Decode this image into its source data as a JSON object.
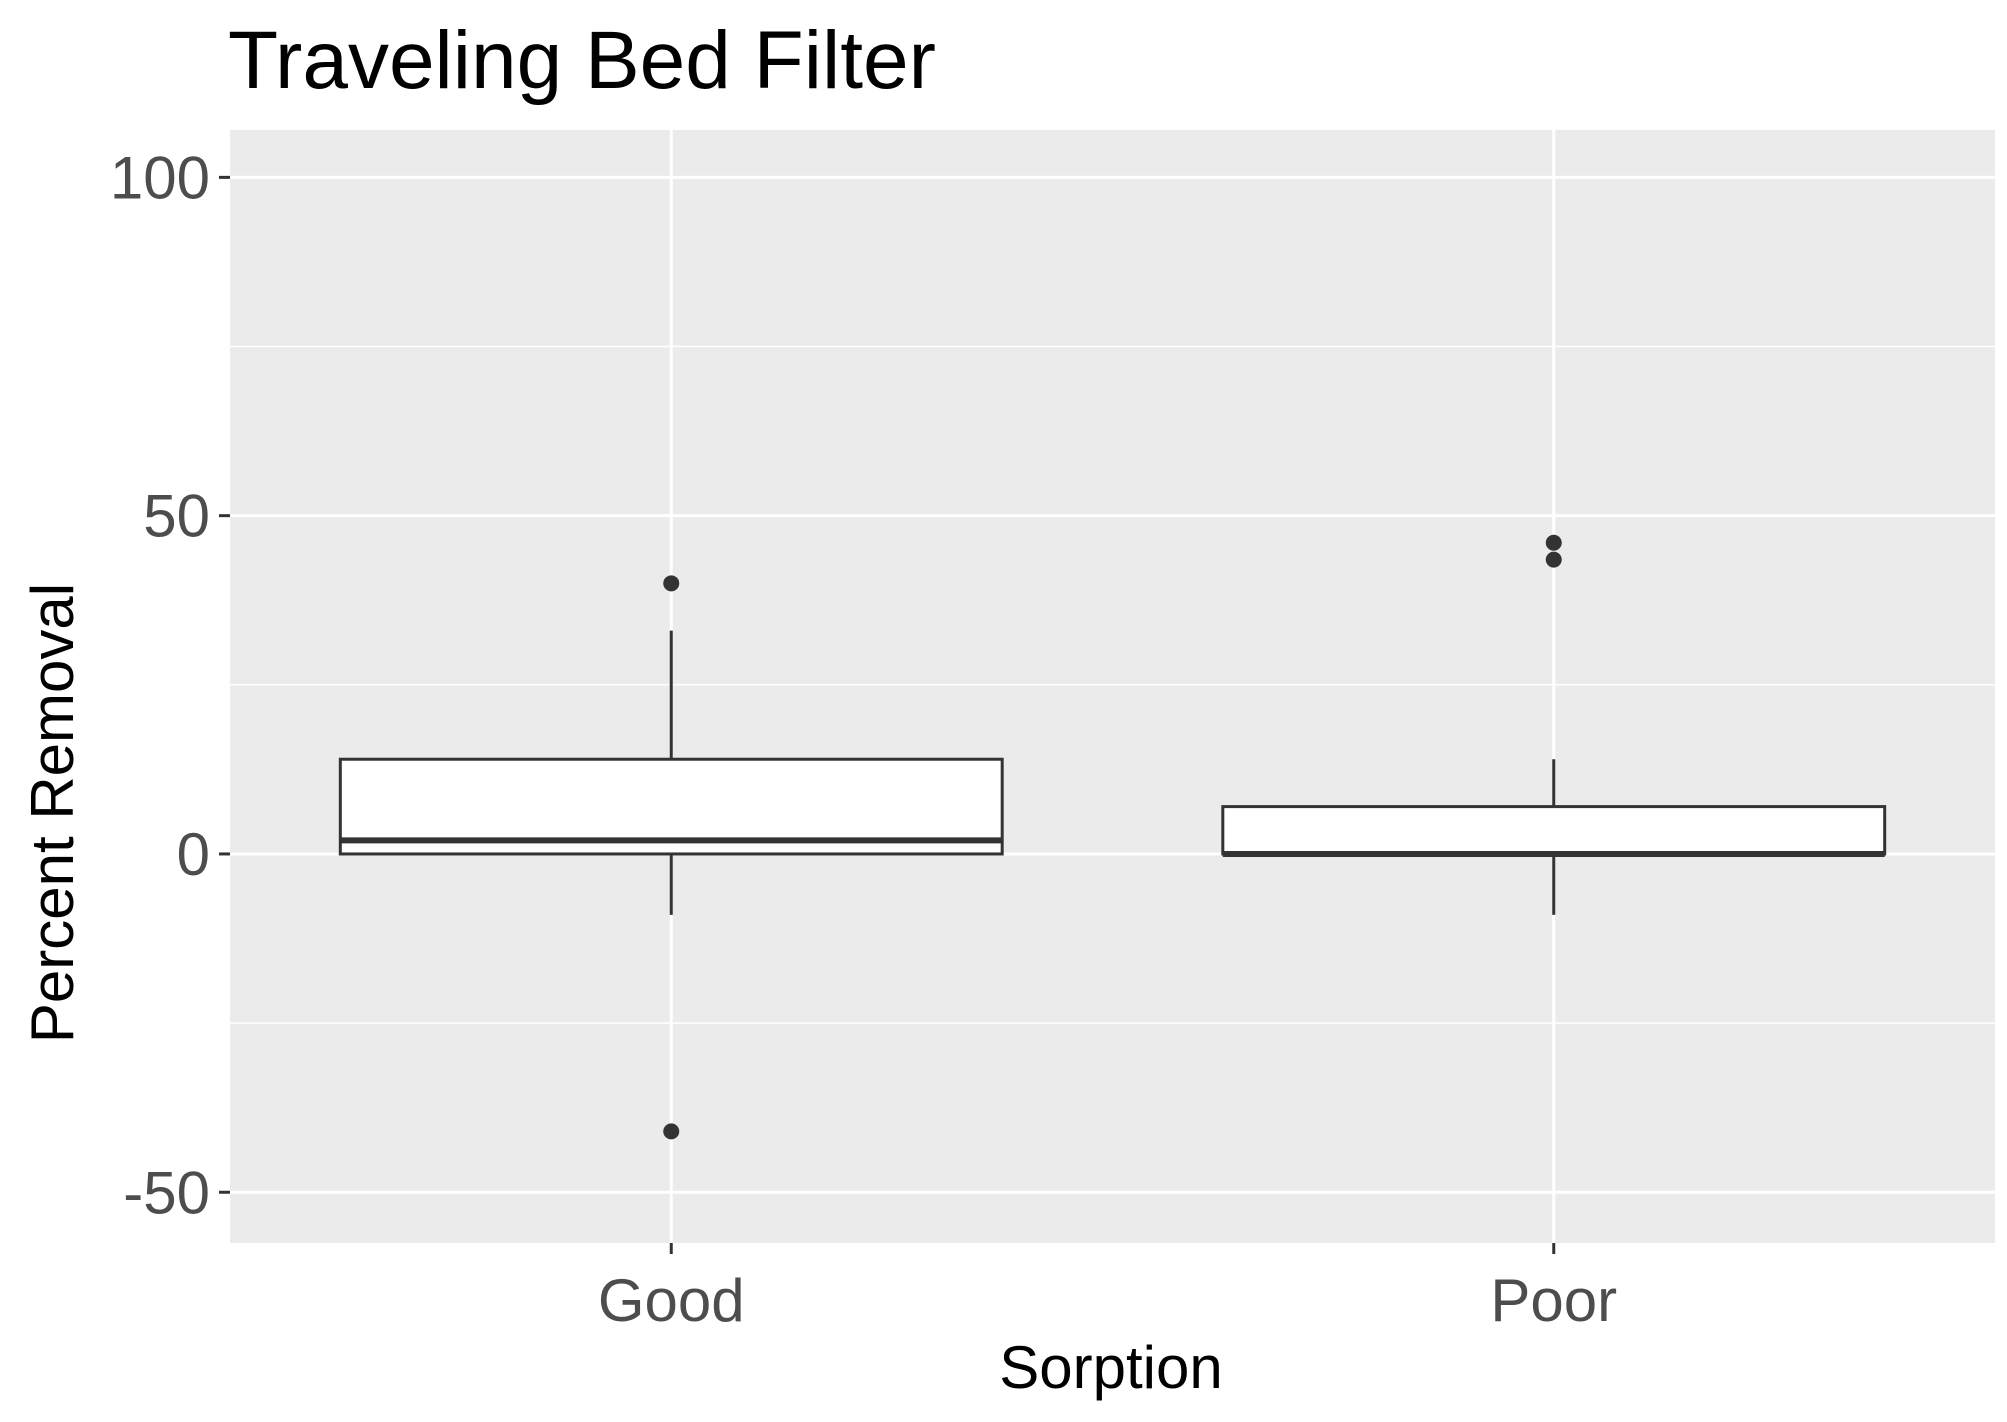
{
  "chart_data": {
    "type": "box",
    "title": "Traveling Bed Filter",
    "xlabel": "Sorption",
    "ylabel": "Percent Removal",
    "ylim": [
      -57.5,
      107
    ],
    "y_ticks": [
      -50,
      0,
      50,
      100
    ],
    "y_minor_gridlines": [
      -25,
      25,
      75
    ],
    "grid": true,
    "categories": [
      "Good",
      "Poor"
    ],
    "boxes": [
      {
        "category": "Good",
        "lower_whisker": -9,
        "q1": 0,
        "median": 2,
        "q3": 14,
        "upper_whisker": 33,
        "outliers": [
          40,
          -41
        ]
      },
      {
        "category": "Poor",
        "lower_whisker": -9,
        "q1": 0,
        "median": 0,
        "q3": 7,
        "upper_whisker": 14,
        "outliers": [
          46,
          43.5
        ]
      }
    ],
    "colors": {
      "panel_background": "#ebebeb",
      "gridline": "#ffffff",
      "box_fill": "#ffffff",
      "box_line": "#333333",
      "tick_text": "#4d4d4d",
      "title_text": "#000000"
    }
  }
}
